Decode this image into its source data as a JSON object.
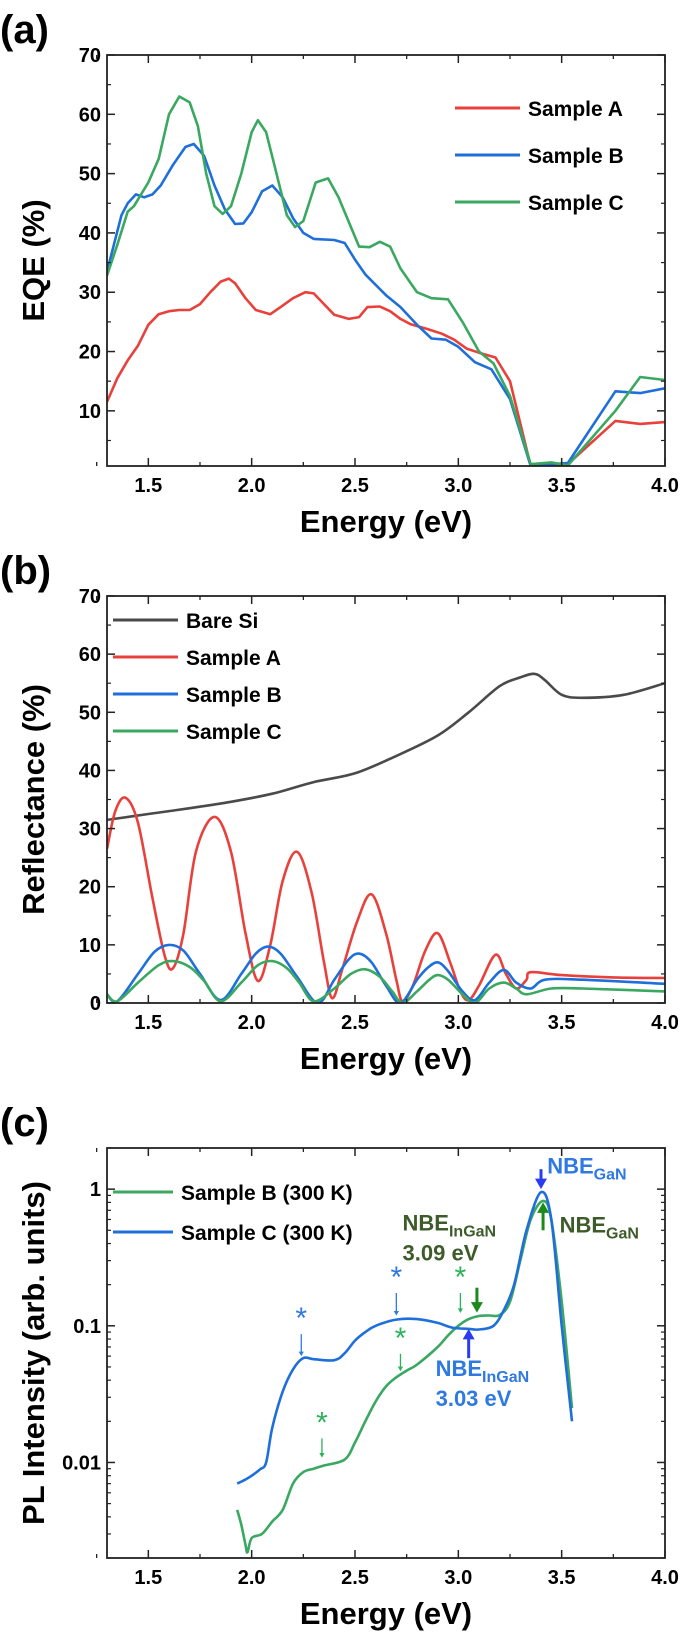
{
  "chart_data": [
    {
      "panel_label": "(a)",
      "type": "line",
      "xlabel": "Energy (eV)",
      "ylabel": "EQE (%)",
      "xlim": [
        1.3,
        4.0
      ],
      "ylim": [
        0.7,
        70
      ],
      "xticks": [
        "1.5",
        "2.0",
        "2.5",
        "3.0",
        "3.5",
        "4.0"
      ],
      "yticks": [
        "10",
        "20",
        "30",
        "40",
        "50",
        "60",
        "70"
      ],
      "legend_position": "top-right",
      "grid": false,
      "series": [
        {
          "name": "Sample A",
          "color": "#e8413c",
          "x": [
            1.3,
            1.35,
            1.4,
            1.45,
            1.5,
            1.55,
            1.6,
            1.65,
            1.7,
            1.75,
            1.8,
            1.85,
            1.89,
            1.92,
            1.97,
            2.02,
            2.09,
            2.14,
            2.2,
            2.26,
            2.3,
            2.35,
            2.4,
            2.47,
            2.52,
            2.56,
            2.62,
            2.67,
            2.72,
            2.77,
            2.85,
            2.92,
            2.98,
            3.04,
            3.1,
            3.18,
            3.25,
            3.35,
            3.52,
            3.76,
            3.88,
            4.0
          ],
          "y": [
            11.5,
            15.5,
            18.5,
            21,
            24.5,
            26.3,
            26.8,
            27,
            27,
            28,
            30,
            31.8,
            32.3,
            31.5,
            29,
            27,
            26.3,
            27.5,
            29,
            30,
            29.8,
            28,
            26.2,
            25.5,
            25.8,
            27.5,
            27.6,
            26.8,
            25.5,
            24.6,
            23.8,
            23,
            22,
            20.5,
            19.8,
            19,
            15,
            0.7,
            0.7,
            8.3,
            7.8,
            8.1
          ]
        },
        {
          "name": "Sample B",
          "color": "#1f6fdb",
          "x": [
            1.3,
            1.37,
            1.4,
            1.44,
            1.48,
            1.52,
            1.56,
            1.62,
            1.68,
            1.72,
            1.77,
            1.82,
            1.87,
            1.92,
            1.96,
            2.0,
            2.05,
            2.1,
            2.15,
            2.2,
            2.25,
            2.3,
            2.4,
            2.45,
            2.5,
            2.55,
            2.65,
            2.72,
            2.8,
            2.87,
            2.94,
            3.0,
            3.08,
            3.16,
            3.25,
            3.35,
            3.45,
            3.53,
            3.76,
            3.88,
            4.0
          ],
          "y": [
            33.5,
            43,
            45,
            46.5,
            46,
            46.5,
            48,
            51.5,
            54.5,
            55,
            53,
            48,
            44,
            41.5,
            41.6,
            43.5,
            47,
            48,
            46,
            42.5,
            40,
            39,
            38.8,
            38.3,
            35.5,
            33,
            29.5,
            27.5,
            24.5,
            22.2,
            22,
            20.8,
            18.2,
            17,
            12,
            0.7,
            1,
            1.2,
            13.3,
            13,
            13.8
          ]
        },
        {
          "name": "Sample C",
          "color": "#3aa860",
          "x": [
            1.3,
            1.35,
            1.4,
            1.43,
            1.5,
            1.55,
            1.6,
            1.65,
            1.7,
            1.74,
            1.78,
            1.82,
            1.86,
            1.9,
            1.95,
            2.0,
            2.03,
            2.07,
            2.12,
            2.17,
            2.21,
            2.25,
            2.31,
            2.37,
            2.42,
            2.48,
            2.52,
            2.57,
            2.62,
            2.67,
            2.72,
            2.8,
            2.87,
            2.95,
            3.02,
            3.1,
            3.17,
            3.25,
            3.35,
            3.45,
            3.53,
            3.76,
            3.88,
            4.0
          ],
          "y": [
            32.8,
            38,
            43.6,
            44.5,
            48.5,
            52.5,
            60,
            63,
            62,
            58,
            50,
            44.5,
            43.2,
            44.5,
            50,
            57,
            59,
            57,
            50,
            43,
            41,
            42,
            48.5,
            49.2,
            46,
            41,
            37.7,
            37.6,
            38.5,
            37.7,
            34,
            30,
            29,
            28.8,
            25,
            20,
            18,
            12.5,
            1,
            1.3,
            0.8,
            10,
            15.7,
            15.2
          ]
        }
      ]
    },
    {
      "panel_label": "(b)",
      "type": "line",
      "xlabel": "Energy (eV)",
      "ylabel": "Reflectance (%)",
      "xlim": [
        1.3,
        4.0
      ],
      "ylim": [
        0,
        70
      ],
      "xticks": [
        "1.5",
        "2.0",
        "2.5",
        "3.0",
        "3.5",
        "4.0"
      ],
      "yticks": [
        "0",
        "10",
        "20",
        "30",
        "40",
        "50",
        "60",
        "70"
      ],
      "legend_position": "top-left",
      "grid": false,
      "series": [
        {
          "name": "Bare Si",
          "color": "#4a4a4a",
          "x": [
            1.3,
            1.5,
            1.7,
            1.9,
            2.1,
            2.3,
            2.5,
            2.7,
            2.9,
            3.05,
            3.2,
            3.3,
            3.37,
            3.42,
            3.5,
            3.6,
            3.8,
            4.0
          ],
          "y": [
            31.5,
            32.5,
            33.5,
            34.6,
            36,
            38,
            39.5,
            42.5,
            46,
            50,
            54.5,
            56,
            56.6,
            55.5,
            53,
            52.5,
            53,
            55
          ]
        },
        {
          "name": "Sample A",
          "color": "#e8413c",
          "x": [
            1.3,
            1.34,
            1.39,
            1.45,
            1.52,
            1.58,
            1.62,
            1.67,
            1.73,
            1.82,
            1.9,
            1.97,
            2.03,
            2.09,
            2.15,
            2.22,
            2.29,
            2.35,
            2.39,
            2.44,
            2.51,
            2.58,
            2.65,
            2.7,
            2.73,
            2.78,
            2.84,
            2.9,
            2.96,
            3.01,
            3.05,
            3.1,
            3.18,
            3.23,
            3.28,
            3.33,
            3.35,
            3.5,
            3.75,
            4.0
          ],
          "y": [
            26.5,
            33,
            35.3,
            31,
            18,
            8,
            6,
            12,
            26,
            32,
            26,
            12,
            3.8,
            10,
            21,
            26,
            19,
            7,
            0.8,
            6,
            14,
            18.7,
            12,
            4,
            0.3,
            3,
            9,
            12,
            7,
            2,
            0.5,
            3,
            8.3,
            5,
            2.5,
            4,
            5.3,
            4.8,
            4.4,
            4.3
          ]
        },
        {
          "name": "Sample B",
          "color": "#1f6fdb",
          "x": [
            1.3,
            1.35,
            1.45,
            1.53,
            1.6,
            1.67,
            1.75,
            1.85,
            1.95,
            2.02,
            2.08,
            2.14,
            2.22,
            2.32,
            2.4,
            2.47,
            2.52,
            2.58,
            2.65,
            2.72,
            2.8,
            2.85,
            2.9,
            2.95,
            3.02,
            3.08,
            3.15,
            3.22,
            3.28,
            3.35,
            3.42,
            3.6,
            4.0
          ],
          "y": [
            1.5,
            0.3,
            5,
            8.8,
            10,
            9,
            5,
            0.5,
            5,
            8.5,
            9.7,
            8.5,
            4.5,
            0,
            4,
            7.5,
            8.5,
            7,
            3,
            0,
            4,
            6,
            7,
            5.5,
            2,
            0.5,
            3.5,
            5.7,
            3.5,
            2.5,
            4,
            4,
            3.3
          ]
        },
        {
          "name": "Sample C",
          "color": "#3aa860",
          "x": [
            1.3,
            1.35,
            1.45,
            1.55,
            1.62,
            1.7,
            1.77,
            1.85,
            1.95,
            2.03,
            2.1,
            2.17,
            2.23,
            2.3,
            2.4,
            2.48,
            2.55,
            2.62,
            2.68,
            2.73,
            2.8,
            2.86,
            2.9,
            2.95,
            3.02,
            3.08,
            3.15,
            3.22,
            3.28,
            3.33,
            3.45,
            3.6,
            4.0
          ],
          "y": [
            1.5,
            0.3,
            3.5,
            6.5,
            7.2,
            6.2,
            3.8,
            0.3,
            3.5,
            6.5,
            7.2,
            6,
            3.5,
            0.3,
            2.5,
            5,
            5.8,
            4.5,
            2,
            0,
            2,
            4,
            4.8,
            4,
            1.5,
            0,
            2.5,
            3.5,
            2.5,
            1.5,
            2.5,
            2.5,
            2
          ]
        }
      ]
    },
    {
      "panel_label": "(c)",
      "type": "line",
      "xlabel": "Energy (eV)",
      "ylabel": "PL Intensity (arb. units)",
      "xlim": [
        1.3,
        4.0
      ],
      "ylim": [
        0.002,
        2
      ],
      "yscale": "log",
      "xticks": [
        "1.5",
        "2.0",
        "2.5",
        "3.0",
        "3.5",
        "4.0"
      ],
      "yticks": [
        "0.01",
        "0.1",
        "1"
      ],
      "legend_position": "top-left",
      "grid": false,
      "series": [
        {
          "name": "Sample B (300 K)",
          "color": "#3aa860",
          "x": [
            1.93,
            1.95,
            1.97,
            1.98,
            2.0,
            2.05,
            2.1,
            2.15,
            2.2,
            2.25,
            2.3,
            2.35,
            2.45,
            2.5,
            2.55,
            2.6,
            2.65,
            2.7,
            2.75,
            2.8,
            2.9,
            2.95,
            3.0,
            3.05,
            3.1,
            3.15,
            3.2,
            3.25,
            3.3,
            3.35,
            3.41,
            3.45,
            3.5,
            3.55
          ],
          "y": [
            0.0045,
            0.0035,
            0.0025,
            0.0022,
            0.0028,
            0.003,
            0.0037,
            0.0045,
            0.007,
            0.0085,
            0.009,
            0.0095,
            0.0105,
            0.014,
            0.02,
            0.028,
            0.036,
            0.042,
            0.047,
            0.052,
            0.07,
            0.085,
            0.1,
            0.112,
            0.118,
            0.119,
            0.12,
            0.15,
            0.3,
            0.6,
            0.82,
            0.6,
            0.15,
            0.025
          ]
        },
        {
          "name": "Sample C (300 K)",
          "color": "#1f6fdb",
          "x": [
            1.93,
            1.97,
            2.0,
            2.04,
            2.07,
            2.1,
            2.15,
            2.2,
            2.25,
            2.3,
            2.4,
            2.45,
            2.5,
            2.55,
            2.6,
            2.7,
            2.8,
            2.9,
            2.97,
            3.05,
            3.1,
            3.17,
            3.22,
            3.27,
            3.33,
            3.4,
            3.45,
            3.5,
            3.55
          ],
          "y": [
            0.007,
            0.0075,
            0.008,
            0.0089,
            0.01,
            0.018,
            0.033,
            0.048,
            0.058,
            0.057,
            0.056,
            0.063,
            0.078,
            0.09,
            0.1,
            0.111,
            0.112,
            0.105,
            0.097,
            0.095,
            0.094,
            0.1,
            0.13,
            0.2,
            0.5,
            0.95,
            0.6,
            0.1,
            0.02
          ]
        }
      ],
      "annotations": {
        "asterisks": [
          {
            "text": "*",
            "x": 2.24,
            "y": 0.11,
            "arrow_to": 0.058,
            "color": "#2f7ae0"
          },
          {
            "text": "*",
            "x": 2.7,
            "y": 0.22,
            "arrow_to": 0.115,
            "color": "#2f7ae0"
          },
          {
            "text": "*",
            "x": 3.01,
            "y": 0.22,
            "arrow_to": 0.12,
            "color": "#2bb35a"
          },
          {
            "text": "*",
            "x": 2.72,
            "y": 0.079,
            "arrow_to": 0.045,
            "color": "#2bb35a"
          },
          {
            "text": "*",
            "x": 2.34,
            "y": 0.019,
            "arrow_to": 0.0105,
            "color": "#2bb35a"
          }
        ],
        "arrows": [
          {
            "x": 3.09,
            "from": 0.19,
            "to": 0.125,
            "color": "#1a8a1a"
          },
          {
            "x": 3.05,
            "from": 0.058,
            "to": 0.095,
            "color": "#2b3cf0"
          },
          {
            "x": 3.4,
            "from": 1.4,
            "to": 1.0,
            "color": "#2b3cf0"
          },
          {
            "x": 3.41,
            "from": 0.5,
            "to": 0.8,
            "color": "#1a8a1a"
          }
        ],
        "labels": [
          {
            "main": "NBE",
            "sub": "GaN",
            "x": 3.43,
            "y": 1.3,
            "color": "#2f7ae0"
          },
          {
            "main": "NBE",
            "sub": "InGaN",
            "x": 2.73,
            "y": 0.5,
            "color": "#3d5c2a",
            "line2": "3.09 eV"
          },
          {
            "main": "NBE",
            "sub": "GaN",
            "x": 3.49,
            "y": 0.48,
            "color": "#3d5c2a"
          },
          {
            "main": "NBE",
            "sub": "InGaN",
            "x": 2.89,
            "y": 0.043,
            "color": "#2f7ae0",
            "line2": "3.03 eV"
          }
        ]
      }
    }
  ]
}
